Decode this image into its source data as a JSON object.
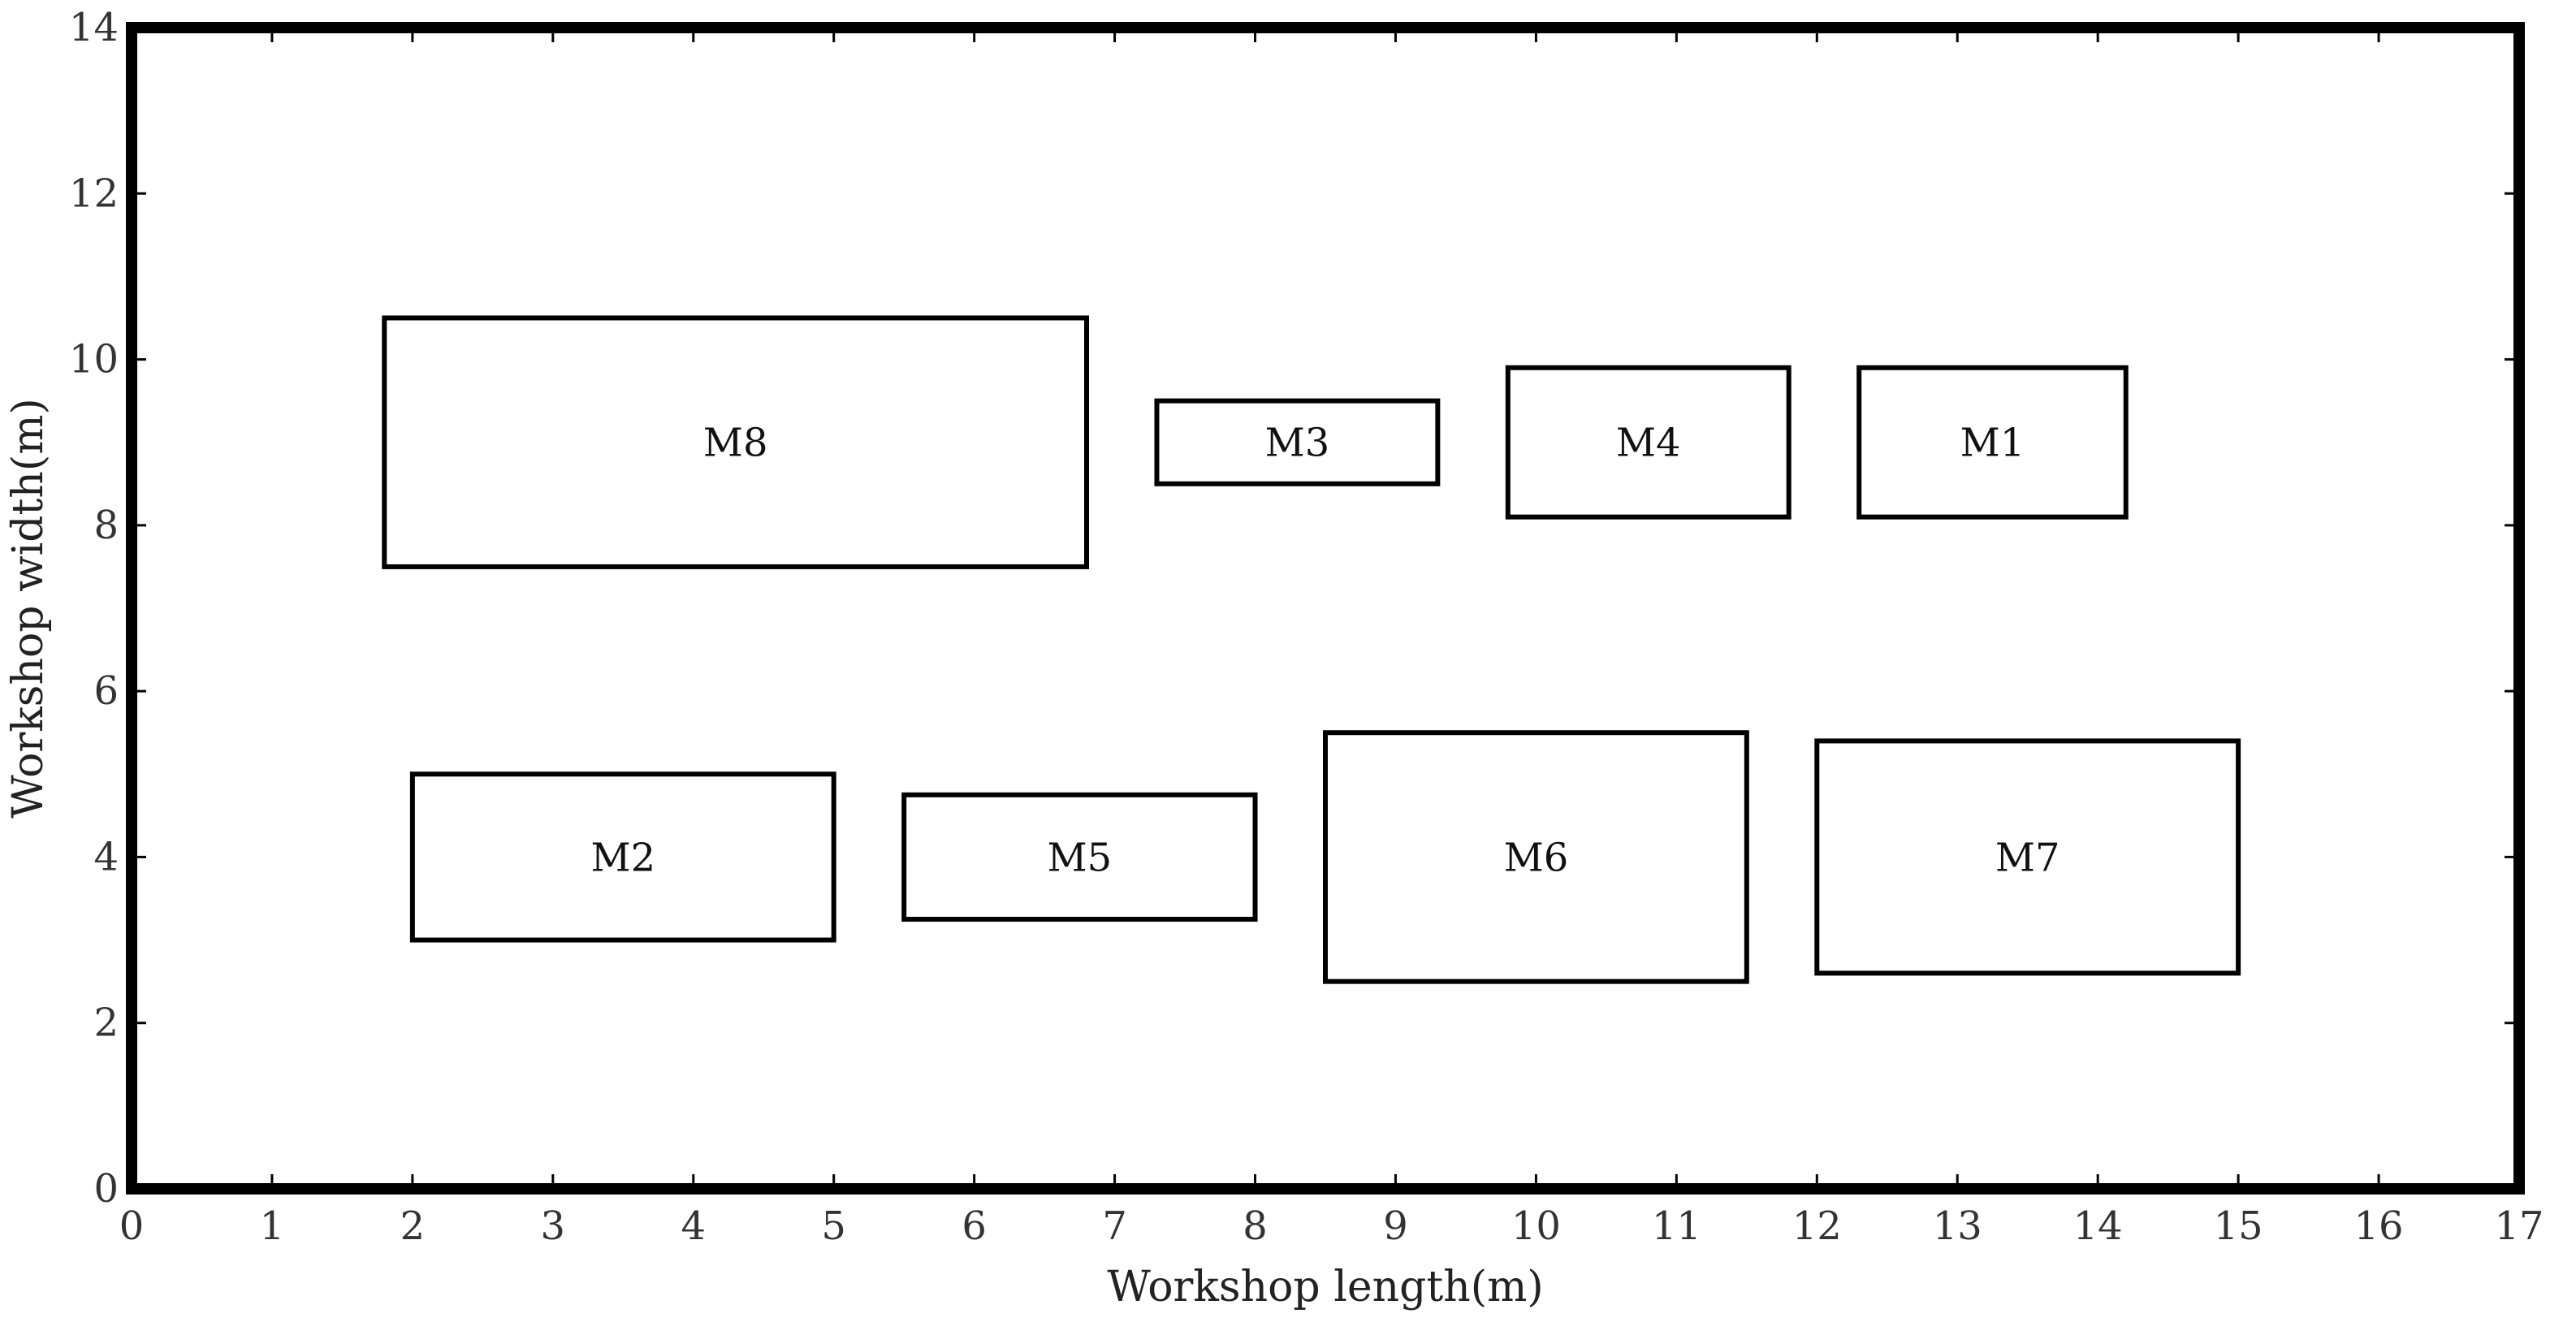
{
  "chart_data": {
    "type": "layout",
    "xlabel": "Workshop length(m)",
    "ylabel": "Workshop width(m)",
    "xlim": [
      0,
      17
    ],
    "ylim": [
      0,
      14
    ],
    "xticks": [
      0,
      1,
      2,
      3,
      4,
      5,
      6,
      7,
      8,
      9,
      10,
      11,
      12,
      13,
      14,
      15,
      16,
      17
    ],
    "yticks": [
      0,
      2,
      4,
      6,
      8,
      10,
      12,
      14
    ],
    "grid": false,
    "colors": {
      "stroke": "#000000",
      "background": "#ffffff"
    },
    "machines": [
      {
        "name": "M8",
        "x0": 1.8,
        "x1": 6.8,
        "y0": 7.5,
        "y1": 10.5
      },
      {
        "name": "M3",
        "x0": 7.3,
        "x1": 9.3,
        "y0": 8.5,
        "y1": 9.5
      },
      {
        "name": "M4",
        "x0": 9.8,
        "x1": 11.8,
        "y0": 8.1,
        "y1": 9.9
      },
      {
        "name": "M1",
        "x0": 12.3,
        "x1": 14.2,
        "y0": 8.1,
        "y1": 9.9
      },
      {
        "name": "M2",
        "x0": 2.0,
        "x1": 5.0,
        "y0": 3.0,
        "y1": 5.0
      },
      {
        "name": "M5",
        "x0": 5.5,
        "x1": 8.0,
        "y0": 3.25,
        "y1": 4.75
      },
      {
        "name": "M6",
        "x0": 8.5,
        "x1": 11.5,
        "y0": 2.5,
        "y1": 5.5
      },
      {
        "name": "M7",
        "x0": 12.0,
        "x1": 15.0,
        "y0": 2.6,
        "y1": 5.4
      }
    ]
  }
}
